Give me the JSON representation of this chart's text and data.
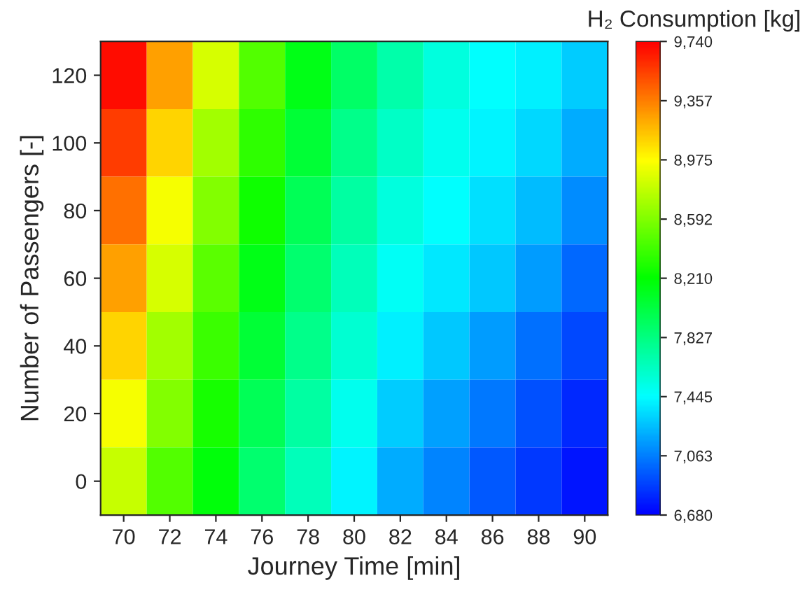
{
  "chart_data": {
    "type": "heatmap",
    "xlabel": "Journey Time [min]",
    "ylabel": "Number of Passengers [-]",
    "clabel": "H₂ Consumption [kg]",
    "categories": [
      "70",
      "72",
      "74",
      "76",
      "78",
      "80",
      "82",
      "84",
      "86",
      "88",
      "90"
    ],
    "y_categories": [
      "120",
      "100",
      "80",
      "60",
      "40",
      "20",
      "0"
    ],
    "cells": [
      [
        9700,
        9250,
        8850,
        8450,
        8150,
        7900,
        7700,
        7550,
        7450,
        7400,
        7300
      ],
      [
        9550,
        9100,
        8700,
        8350,
        8050,
        7800,
        7620,
        7500,
        7420,
        7330,
        7200
      ],
      [
        9400,
        8950,
        8600,
        8250,
        7950,
        7720,
        7550,
        7450,
        7350,
        7250,
        7100
      ],
      [
        9250,
        8850,
        8480,
        8150,
        7880,
        7650,
        7470,
        7380,
        7280,
        7150,
        7000
      ],
      [
        9100,
        8700,
        8380,
        8050,
        7800,
        7580,
        7400,
        7280,
        7150,
        7020,
        6900
      ],
      [
        8950,
        8600,
        8280,
        7950,
        7720,
        7500,
        7300,
        7170,
        7050,
        6930,
        6800
      ],
      [
        8800,
        8450,
        8180,
        7880,
        7650,
        7420,
        7200,
        7080,
        6950,
        6850,
        6750
      ]
    ],
    "colors": [
      "#0000ff",
      "#00ffff",
      "#00ff00",
      "#ffff00",
      "#ff0000"
    ],
    "clim": [
      6680,
      9740
    ],
    "cticks": [
      {
        "value": 6680,
        "label": "6,680"
      },
      {
        "value": 7063,
        "label": "7,063"
      },
      {
        "value": 7445,
        "label": "7,445"
      },
      {
        "value": 7827,
        "label": "7,827"
      },
      {
        "value": 8210,
        "label": "8,210"
      },
      {
        "value": 8592,
        "label": "8,592"
      },
      {
        "value": 8975,
        "label": "8,975"
      },
      {
        "value": 9357,
        "label": "9,357"
      },
      {
        "value": 9740,
        "label": "9,740"
      }
    ]
  }
}
